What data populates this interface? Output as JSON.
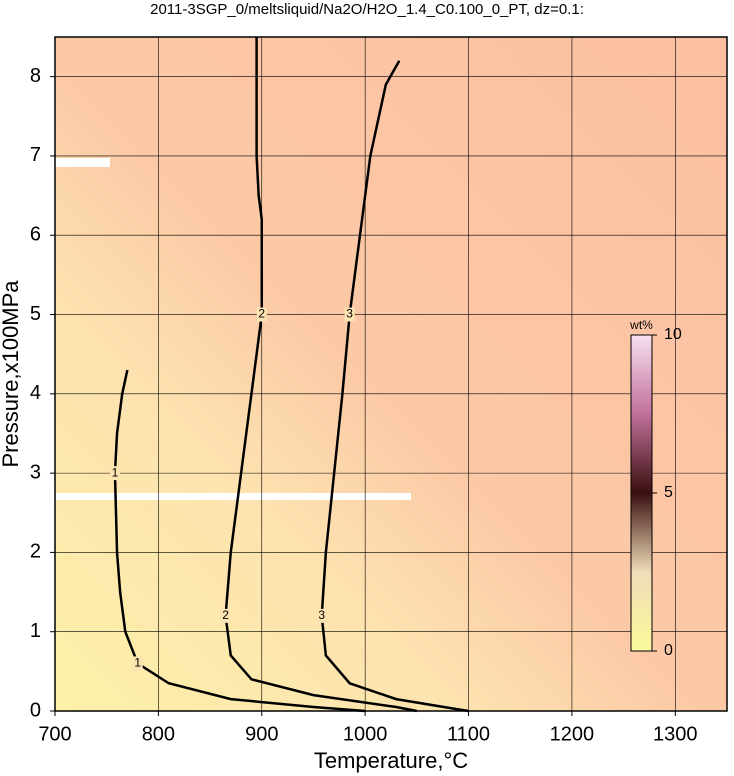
{
  "chart_data": {
    "type": "contour",
    "title": "2011-3SGP_0/meltsliquid/Na2O/H2O_1.4_C0.100_0_PT, dz=0.1:",
    "x_label": "Temperature,°C",
    "y_label": "Pressure,x100MPa",
    "xlim": [
      700,
      1350
    ],
    "ylim": [
      0,
      8.5
    ],
    "xticks": [
      700,
      800,
      900,
      1000,
      1100,
      1200,
      1300
    ],
    "yticks": [
      0,
      1,
      2,
      3,
      4,
      5,
      6,
      7,
      8
    ],
    "grid": true,
    "contours": [
      {
        "level": 1,
        "x": [
          770,
          765,
          760,
          758,
          760,
          763,
          768,
          780,
          810,
          870,
          950,
          1000
        ],
        "y": [
          4.3,
          4.0,
          3.5,
          3.0,
          2.0,
          1.5,
          1.0,
          0.6,
          0.35,
          0.15,
          0.05,
          0.0
        ]
      },
      {
        "level": 2,
        "x": [
          895,
          895,
          897,
          900,
          900,
          890,
          880,
          870,
          865,
          870,
          890,
          950,
          1030,
          1050
        ],
        "y": [
          8.5,
          7.0,
          6.5,
          6.2,
          5.0,
          4.0,
          3.0,
          2.0,
          1.2,
          0.7,
          0.4,
          0.2,
          0.05,
          0.0
        ]
      },
      {
        "level": 3,
        "x": [
          1033,
          1020,
          1005,
          995,
          985,
          978,
          970,
          962,
          958,
          962,
          985,
          1030,
          1090,
          1100
        ],
        "y": [
          8.2,
          7.9,
          7.0,
          6.0,
          5.0,
          4.0,
          3.0,
          2.0,
          1.2,
          0.7,
          0.35,
          0.15,
          0.02,
          0.0
        ]
      }
    ],
    "colorbar": {
      "label": "wt%",
      "lim": [
        0,
        10
      ],
      "ticks": [
        0,
        5,
        10
      ]
    }
  }
}
